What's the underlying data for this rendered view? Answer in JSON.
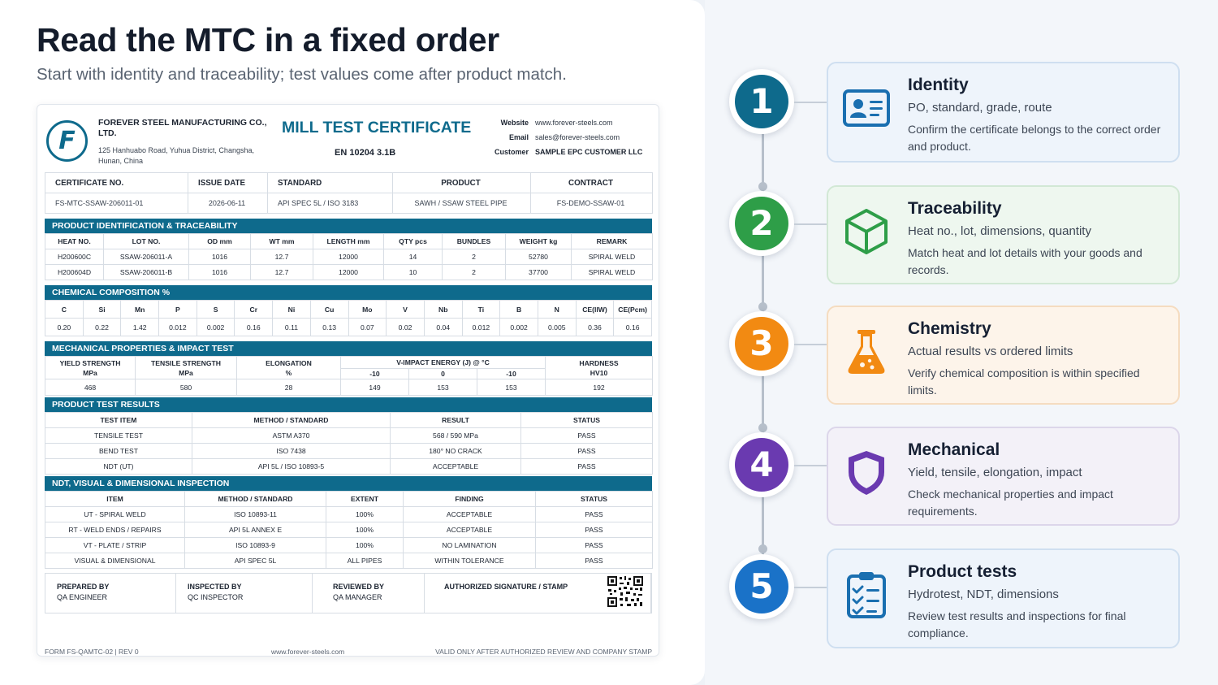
{
  "title": "Read the MTC in a fixed order",
  "subtitle": "Start with identity and traceability; test values come after product match.",
  "certificate": {
    "logo_letter": "F",
    "company": "FOREVER STEEL MANUFACTURING CO., LTD.",
    "address": "125 Hanhuabo Road, Yuhua District, Changsha, Hunan, China",
    "title": "MILL TEST CERTIFICATE",
    "standard": "EN 10204 3.1B",
    "contact": [
      {
        "label": "Website",
        "value": "www.forever-steels.com"
      },
      {
        "label": "Email",
        "value": "sales@forever-steels.com"
      },
      {
        "label": "Customer",
        "value": "SAMPLE EPC CUSTOMER LLC"
      }
    ],
    "header_fields": [
      {
        "label": "CERTIFICATE NO.",
        "value": "FS-MTC-SSAW-206011-01"
      },
      {
        "label": "ISSUE DATE",
        "value": "2026-06-11"
      },
      {
        "label": "STANDARD",
        "value": "API SPEC 5L / ISO 3183"
      },
      {
        "label": "PRODUCT",
        "value": "SAWH / SSAW STEEL PIPE"
      },
      {
        "label": "CONTRACT",
        "value": "FS-DEMO-SSAW-01"
      }
    ],
    "product_id": {
      "title": "PRODUCT IDENTIFICATION & TRACEABILITY",
      "columns": [
        "HEAT NO.",
        "LOT NO.",
        "OD mm",
        "WT mm",
        "LENGTH mm",
        "QTY pcs",
        "BUNDLES",
        "WEIGHT kg",
        "REMARK"
      ],
      "rows": [
        [
          "H200600C",
          "SSAW-206011-A",
          "1016",
          "12.7",
          "12000",
          "14",
          "2",
          "52780",
          "SPIRAL WELD"
        ],
        [
          "H200604D",
          "SSAW-206011-B",
          "1016",
          "12.7",
          "12000",
          "10",
          "2",
          "37700",
          "SPIRAL WELD"
        ]
      ]
    },
    "chemical": {
      "title": "CHEMICAL COMPOSITION %",
      "columns": [
        "C",
        "Si",
        "Mn",
        "P",
        "S",
        "Cr",
        "Ni",
        "Cu",
        "Mo",
        "V",
        "Nb",
        "Ti",
        "B",
        "N",
        "CE(IIW)",
        "CE(Pcm)"
      ],
      "values": [
        "0.20",
        "0.22",
        "1.42",
        "0.012",
        "0.002",
        "0.16",
        "0.11",
        "0.13",
        "0.07",
        "0.02",
        "0.04",
        "0.012",
        "0.002",
        "0.005",
        "0.36",
        "0.16"
      ]
    },
    "mechanical": {
      "title": "MECHANICAL PROPERTIES & IMPACT TEST",
      "yield_label": "YIELD STRENGTH",
      "yield_unit": "MPa",
      "tensile_label": "TENSILE STRENGTH",
      "tensile_unit": "MPa",
      "elong_label": "ELONGATION",
      "elong_unit": "%",
      "impact_label": "V-IMPACT ENERGY (J) @ °C",
      "impact_temps": [
        "-10",
        "0",
        "-10"
      ],
      "hardness_label": "HARDNESS",
      "hardness_unit": "HV10",
      "values": {
        "yield": "468",
        "tensile": "580",
        "elong": "28",
        "impact": [
          "149",
          "153",
          "153"
        ],
        "hardness": "192"
      }
    },
    "product_tests": {
      "title": "PRODUCT TEST RESULTS",
      "columns": [
        "TEST ITEM",
        "METHOD / STANDARD",
        "RESULT",
        "STATUS"
      ],
      "rows": [
        [
          "TENSILE TEST",
          "ASTM A370",
          "568 / 590 MPa",
          "PASS"
        ],
        [
          "BEND TEST",
          "ISO 7438",
          "180° NO CRACK",
          "PASS"
        ],
        [
          "NDT (UT)",
          "API 5L / ISO 10893-5",
          "ACCEPTABLE",
          "PASS"
        ]
      ]
    },
    "ndt": {
      "title": "NDT, VISUAL & DIMENSIONAL INSPECTION",
      "columns": [
        "ITEM",
        "METHOD / STANDARD",
        "EXTENT",
        "FINDING",
        "STATUS"
      ],
      "rows": [
        [
          "UT - SPIRAL WELD",
          "ISO 10893-11",
          "100%",
          "ACCEPTABLE",
          "PASS"
        ],
        [
          "RT - WELD ENDS / REPAIRS",
          "API 5L ANNEX E",
          "100%",
          "ACCEPTABLE",
          "PASS"
        ],
        [
          "VT - PLATE / STRIP",
          "ISO 10893-9",
          "100%",
          "NO LAMINATION",
          "PASS"
        ],
        [
          "VISUAL & DIMENSIONAL",
          "API SPEC 5L",
          "ALL PIPES",
          "WITHIN TOLERANCE",
          "PASS"
        ]
      ]
    },
    "signatures": [
      {
        "role": "PREPARED BY",
        "name": "QA ENGINEER"
      },
      {
        "role": "INSPECTED BY",
        "name": "QC INSPECTOR"
      },
      {
        "role": "REVIEWED BY",
        "name": "QA MANAGER"
      },
      {
        "role": "AUTHORIZED SIGNATURE / STAMP",
        "name": ""
      }
    ],
    "footer": {
      "form": "FORM FS-QAMTC-02  |  REV 0",
      "site": "www.forever-steels.com",
      "note": "VALID ONLY AFTER AUTHORIZED REVIEW AND COMPANY STAMP"
    }
  },
  "steps": [
    {
      "number": "1",
      "title": "Identity",
      "subtitle": "PO, standard, grade, route",
      "description": "Confirm the certificate belongs to the correct order and product.",
      "color": "#0e6a8c",
      "card_bg": "#eef4fb",
      "card_border": "#cfdff0",
      "icon": "id-card-icon"
    },
    {
      "number": "2",
      "title": "Traceability",
      "subtitle": "Heat no., lot, dimensions, quantity",
      "description": "Match heat and lot details with your goods and records.",
      "color": "#2e9e48",
      "card_bg": "#eef7ef",
      "card_border": "#d2e8d5",
      "icon": "box-icon"
    },
    {
      "number": "3",
      "title": "Chemistry",
      "subtitle": "Actual results vs ordered limits",
      "description": "Verify chemical composition is within specified limits.",
      "color": "#f28a12",
      "card_bg": "#fdf4ea",
      "card_border": "#f5dcc0",
      "icon": "flask-icon"
    },
    {
      "number": "4",
      "title": "Mechanical",
      "subtitle": "Yield, tensile, elongation, impact",
      "description": "Check mechanical properties and impact requirements.",
      "color": "#6a3ab0",
      "card_bg": "#f3f1f8",
      "card_border": "#dcd6ea",
      "icon": "shield-icon"
    },
    {
      "number": "5",
      "title": "Product tests",
      "subtitle": "Hydrotest, NDT, dimensions",
      "description": "Review test results and inspections for final compliance.",
      "color": "#1a72c8",
      "card_bg": "#eef4fb",
      "card_border": "#cfdff0",
      "icon": "clipboard-check-icon"
    }
  ]
}
